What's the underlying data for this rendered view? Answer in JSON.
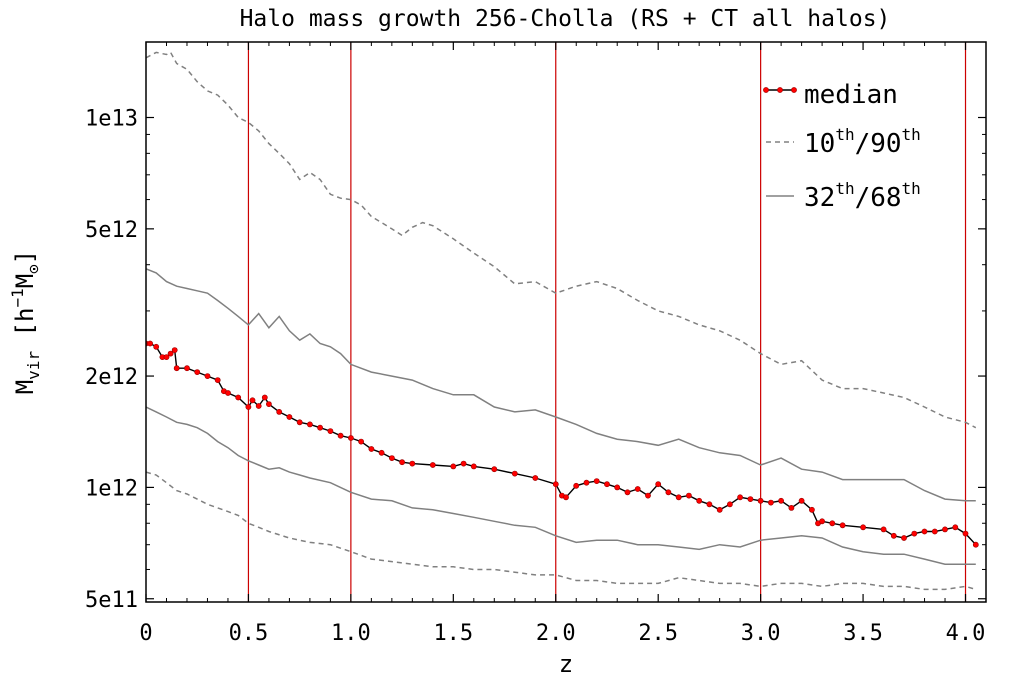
{
  "chart_data": {
    "type": "line",
    "title": "Halo mass growth 256-Cholla (RS + CT all halos)",
    "xlabel": "z",
    "ylabel": {
      "base": "M",
      "sub": "vir",
      "unit_open": " [h",
      "unit_sup": "−1",
      "unit_base": "M",
      "unit_sub": "⊙",
      "unit_close": "]"
    },
    "xlim": [
      0,
      4.1
    ],
    "ylim": [
      490000000000.0,
      16000000000000.0
    ],
    "yscale": "log",
    "grid": false,
    "legend_position": "top-right",
    "xticks": [
      {
        "value": 0,
        "label": "0"
      },
      {
        "value": 0.5,
        "label": "0.5"
      },
      {
        "value": 1.0,
        "label": "1.0"
      },
      {
        "value": 1.5,
        "label": "1.5"
      },
      {
        "value": 2.0,
        "label": "2.0"
      },
      {
        "value": 2.5,
        "label": "2.5"
      },
      {
        "value": 3.0,
        "label": "3.0"
      },
      {
        "value": 3.5,
        "label": "3.5"
      },
      {
        "value": 4.0,
        "label": "4.0"
      }
    ],
    "yticks": [
      {
        "value": 500000000000.0,
        "label": "5e11"
      },
      {
        "value": 1000000000000.0,
        "label": "1e12"
      },
      {
        "value": 2000000000000.0,
        "label": "2e12"
      },
      {
        "value": 5000000000000.0,
        "label": "5e12"
      },
      {
        "value": 10000000000000.0,
        "label": "1e13"
      }
    ],
    "vlines": [
      0.5,
      1.0,
      2.0,
      3.0,
      4.0
    ],
    "colors": {
      "median_line": "#000000",
      "median_marker": "#ff0000",
      "percentile": "#808080",
      "vline": "#cc0000"
    },
    "legend": [
      {
        "key": "median",
        "text": "median"
      },
      {
        "key": "p10_90",
        "pre": "10",
        "sup1": "th",
        "mid": "/90",
        "sup2": "th"
      },
      {
        "key": "p32_68",
        "pre": "32",
        "sup1": "th",
        "mid": "/68",
        "sup2": "th"
      }
    ],
    "series": [
      {
        "key": "median",
        "style": "solid-markers",
        "x": [
          0,
          0.02,
          0.05,
          0.08,
          0.1,
          0.12,
          0.14,
          0.15,
          0.2,
          0.25,
          0.3,
          0.35,
          0.38,
          0.4,
          0.45,
          0.5,
          0.52,
          0.55,
          0.58,
          0.6,
          0.65,
          0.7,
          0.75,
          0.8,
          0.85,
          0.9,
          0.95,
          1.0,
          1.05,
          1.1,
          1.15,
          1.2,
          1.25,
          1.3,
          1.4,
          1.5,
          1.55,
          1.6,
          1.7,
          1.8,
          1.9,
          2.0,
          2.03,
          2.05,
          2.1,
          2.15,
          2.2,
          2.25,
          2.3,
          2.35,
          2.4,
          2.45,
          2.5,
          2.55,
          2.6,
          2.65,
          2.7,
          2.75,
          2.8,
          2.85,
          2.9,
          2.95,
          3.0,
          3.05,
          3.1,
          3.15,
          3.2,
          3.25,
          3.28,
          3.3,
          3.35,
          3.4,
          3.5,
          3.6,
          3.65,
          3.7,
          3.75,
          3.8,
          3.85,
          3.9,
          3.95,
          4.0,
          4.05
        ],
        "y": [
          2450000000000.0,
          2450000000000.0,
          2400000000000.0,
          2250000000000.0,
          2250000000000.0,
          2300000000000.0,
          2350000000000.0,
          2100000000000.0,
          2100000000000.0,
          2050000000000.0,
          2000000000000.0,
          1950000000000.0,
          1820000000000.0,
          1800000000000.0,
          1750000000000.0,
          1650000000000.0,
          1720000000000.0,
          1660000000000.0,
          1750000000000.0,
          1680000000000.0,
          1600000000000.0,
          1550000000000.0,
          1500000000000.0,
          1480000000000.0,
          1450000000000.0,
          1420000000000.0,
          1380000000000.0,
          1360000000000.0,
          1330000000000.0,
          1270000000000.0,
          1240000000000.0,
          1200000000000.0,
          1170000000000.0,
          1160000000000.0,
          1150000000000.0,
          1140000000000.0,
          1160000000000.0,
          1140000000000.0,
          1120000000000.0,
          1090000000000.0,
          1060000000000.0,
          1020000000000.0,
          950000000000.0,
          940000000000.0,
          1010000000000.0,
          1030000000000.0,
          1040000000000.0,
          1020000000000.0,
          1000000000000.0,
          970000000000.0,
          990000000000.0,
          950000000000.0,
          1020000000000.0,
          970000000000.0,
          940000000000.0,
          950000000000.0,
          920000000000.0,
          900000000000.0,
          870000000000.0,
          900000000000.0,
          940000000000.0,
          930000000000.0,
          920000000000.0,
          910000000000.0,
          920000000000.0,
          880000000000.0,
          920000000000.0,
          870000000000.0,
          800000000000.0,
          810000000000.0,
          800000000000.0,
          790000000000.0,
          780000000000.0,
          770000000000.0,
          740000000000.0,
          730000000000.0,
          750000000000.0,
          760000000000.0,
          760000000000.0,
          770000000000.0,
          780000000000.0,
          750000000000.0,
          700000000000.0
        ]
      },
      {
        "key": "p32_68_upper",
        "style": "solid",
        "x": [
          0,
          0.05,
          0.1,
          0.15,
          0.2,
          0.25,
          0.3,
          0.35,
          0.4,
          0.45,
          0.5,
          0.55,
          0.6,
          0.65,
          0.7,
          0.75,
          0.8,
          0.85,
          0.9,
          0.95,
          1.0,
          1.1,
          1.2,
          1.3,
          1.4,
          1.5,
          1.6,
          1.7,
          1.8,
          1.9,
          2.0,
          2.1,
          2.2,
          2.3,
          2.4,
          2.5,
          2.6,
          2.7,
          2.8,
          2.9,
          3.0,
          3.1,
          3.2,
          3.3,
          3.4,
          3.5,
          3.6,
          3.7,
          3.8,
          3.9,
          4.0,
          4.05
        ],
        "y": [
          3900000000000.0,
          3800000000000.0,
          3600000000000.0,
          3500000000000.0,
          3450000000000.0,
          3400000000000.0,
          3350000000000.0,
          3200000000000.0,
          3050000000000.0,
          2900000000000.0,
          2750000000000.0,
          2950000000000.0,
          2700000000000.0,
          2900000000000.0,
          2650000000000.0,
          2500000000000.0,
          2600000000000.0,
          2450000000000.0,
          2400000000000.0,
          2300000000000.0,
          2150000000000.0,
          2050000000000.0,
          2000000000000.0,
          1950000000000.0,
          1850000000000.0,
          1780000000000.0,
          1780000000000.0,
          1650000000000.0,
          1600000000000.0,
          1620000000000.0,
          1550000000000.0,
          1480000000000.0,
          1400000000000.0,
          1350000000000.0,
          1330000000000.0,
          1300000000000.0,
          1350000000000.0,
          1280000000000.0,
          1240000000000.0,
          1220000000000.0,
          1150000000000.0,
          1200000000000.0,
          1120000000000.0,
          1100000000000.0,
          1050000000000.0,
          1050000000000.0,
          1050000000000.0,
          1050000000000.0,
          980000000000.0,
          930000000000.0,
          920000000000.0,
          920000000000.0
        ]
      },
      {
        "key": "p32_68_lower",
        "style": "solid",
        "x": [
          0,
          0.05,
          0.1,
          0.15,
          0.2,
          0.25,
          0.3,
          0.35,
          0.4,
          0.45,
          0.5,
          0.55,
          0.6,
          0.65,
          0.7,
          0.75,
          0.8,
          0.9,
          1.0,
          1.1,
          1.2,
          1.3,
          1.4,
          1.5,
          1.6,
          1.7,
          1.8,
          1.9,
          2.0,
          2.1,
          2.2,
          2.3,
          2.4,
          2.5,
          2.6,
          2.7,
          2.8,
          2.9,
          3.0,
          3.1,
          3.2,
          3.3,
          3.4,
          3.5,
          3.6,
          3.7,
          3.8,
          3.9,
          4.0,
          4.05
        ],
        "y": [
          1650000000000.0,
          1600000000000.0,
          1550000000000.0,
          1500000000000.0,
          1480000000000.0,
          1450000000000.0,
          1400000000000.0,
          1330000000000.0,
          1280000000000.0,
          1220000000000.0,
          1180000000000.0,
          1150000000000.0,
          1120000000000.0,
          1130000000000.0,
          1100000000000.0,
          1080000000000.0,
          1060000000000.0,
          1030000000000.0,
          970000000000.0,
          930000000000.0,
          920000000000.0,
          880000000000.0,
          870000000000.0,
          850000000000.0,
          830000000000.0,
          810000000000.0,
          790000000000.0,
          780000000000.0,
          740000000000.0,
          710000000000.0,
          720000000000.0,
          720000000000.0,
          700000000000.0,
          700000000000.0,
          690000000000.0,
          680000000000.0,
          700000000000.0,
          690000000000.0,
          720000000000.0,
          730000000000.0,
          740000000000.0,
          730000000000.0,
          690000000000.0,
          670000000000.0,
          660000000000.0,
          660000000000.0,
          640000000000.0,
          620000000000.0,
          620000000000.0,
          620000000000.0
        ]
      },
      {
        "key": "p10_90_upper",
        "style": "dashed",
        "x": [
          0,
          0.05,
          0.1,
          0.12,
          0.15,
          0.2,
          0.25,
          0.3,
          0.35,
          0.4,
          0.45,
          0.5,
          0.55,
          0.6,
          0.65,
          0.7,
          0.75,
          0.8,
          0.85,
          0.9,
          0.95,
          1.0,
          1.05,
          1.1,
          1.15,
          1.2,
          1.25,
          1.3,
          1.35,
          1.4,
          1.5,
          1.6,
          1.7,
          1.8,
          1.9,
          2.0,
          2.1,
          2.2,
          2.3,
          2.4,
          2.5,
          2.6,
          2.7,
          2.8,
          2.9,
          3.0,
          3.1,
          3.2,
          3.3,
          3.4,
          3.5,
          3.6,
          3.7,
          3.8,
          3.9,
          4.0,
          4.05
        ],
        "y": [
          14500000000000.0,
          15000000000000.0,
          14800000000000.0,
          15000000000000.0,
          14000000000000.0,
          13500000000000.0,
          12500000000000.0,
          11800000000000.0,
          11500000000000.0,
          10800000000000.0,
          10000000000000.0,
          9700000000000.0,
          9200000000000.0,
          8500000000000.0,
          8000000000000.0,
          7500000000000.0,
          6800000000000.0,
          7100000000000.0,
          6800000000000.0,
          6200000000000.0,
          6050000000000.0,
          6000000000000.0,
          5800000000000.0,
          5400000000000.0,
          5200000000000.0,
          5000000000000.0,
          4800000000000.0,
          5050000000000.0,
          5200000000000.0,
          5100000000000.0,
          4700000000000.0,
          4300000000000.0,
          3950000000000.0,
          3550000000000.0,
          3600000000000.0,
          3350000000000.0,
          3500000000000.0,
          3600000000000.0,
          3450000000000.0,
          3200000000000.0,
          3000000000000.0,
          2900000000000.0,
          2750000000000.0,
          2650000000000.0,
          2500000000000.0,
          2300000000000.0,
          2150000000000.0,
          2200000000000.0,
          1950000000000.0,
          1850000000000.0,
          1850000000000.0,
          1800000000000.0,
          1750000000000.0,
          1650000000000.0,
          1550000000000.0,
          1500000000000.0,
          1450000000000.0
        ]
      },
      {
        "key": "p10_90_lower",
        "style": "dashed",
        "x": [
          0,
          0.05,
          0.1,
          0.15,
          0.2,
          0.25,
          0.3,
          0.35,
          0.4,
          0.45,
          0.5,
          0.55,
          0.6,
          0.7,
          0.8,
          0.9,
          1.0,
          1.1,
          1.2,
          1.3,
          1.4,
          1.5,
          1.6,
          1.7,
          1.8,
          1.9,
          2.0,
          2.1,
          2.2,
          2.3,
          2.4,
          2.5,
          2.6,
          2.7,
          2.8,
          2.9,
          3.0,
          3.1,
          3.2,
          3.3,
          3.4,
          3.5,
          3.6,
          3.7,
          3.8,
          3.9,
          4.0,
          4.05
        ],
        "y": [
          1100000000000.0,
          1080000000000.0,
          1030000000000.0,
          980000000000.0,
          960000000000.0,
          930000000000.0,
          900000000000.0,
          880000000000.0,
          860000000000.0,
          840000000000.0,
          800000000000.0,
          780000000000.0,
          760000000000.0,
          730000000000.0,
          710000000000.0,
          700000000000.0,
          670000000000.0,
          640000000000.0,
          630000000000.0,
          620000000000.0,
          610000000000.0,
          610000000000.0,
          600000000000.0,
          600000000000.0,
          590000000000.0,
          580000000000.0,
          580000000000.0,
          560000000000.0,
          560000000000.0,
          550000000000.0,
          550000000000.0,
          550000000000.0,
          570000000000.0,
          560000000000.0,
          550000000000.0,
          550000000000.0,
          540000000000.0,
          550000000000.0,
          550000000000.0,
          540000000000.0,
          550000000000.0,
          550000000000.0,
          540000000000.0,
          540000000000.0,
          530000000000.0,
          530000000000.0,
          540000000000.0,
          530000000000.0
        ]
      }
    ]
  }
}
